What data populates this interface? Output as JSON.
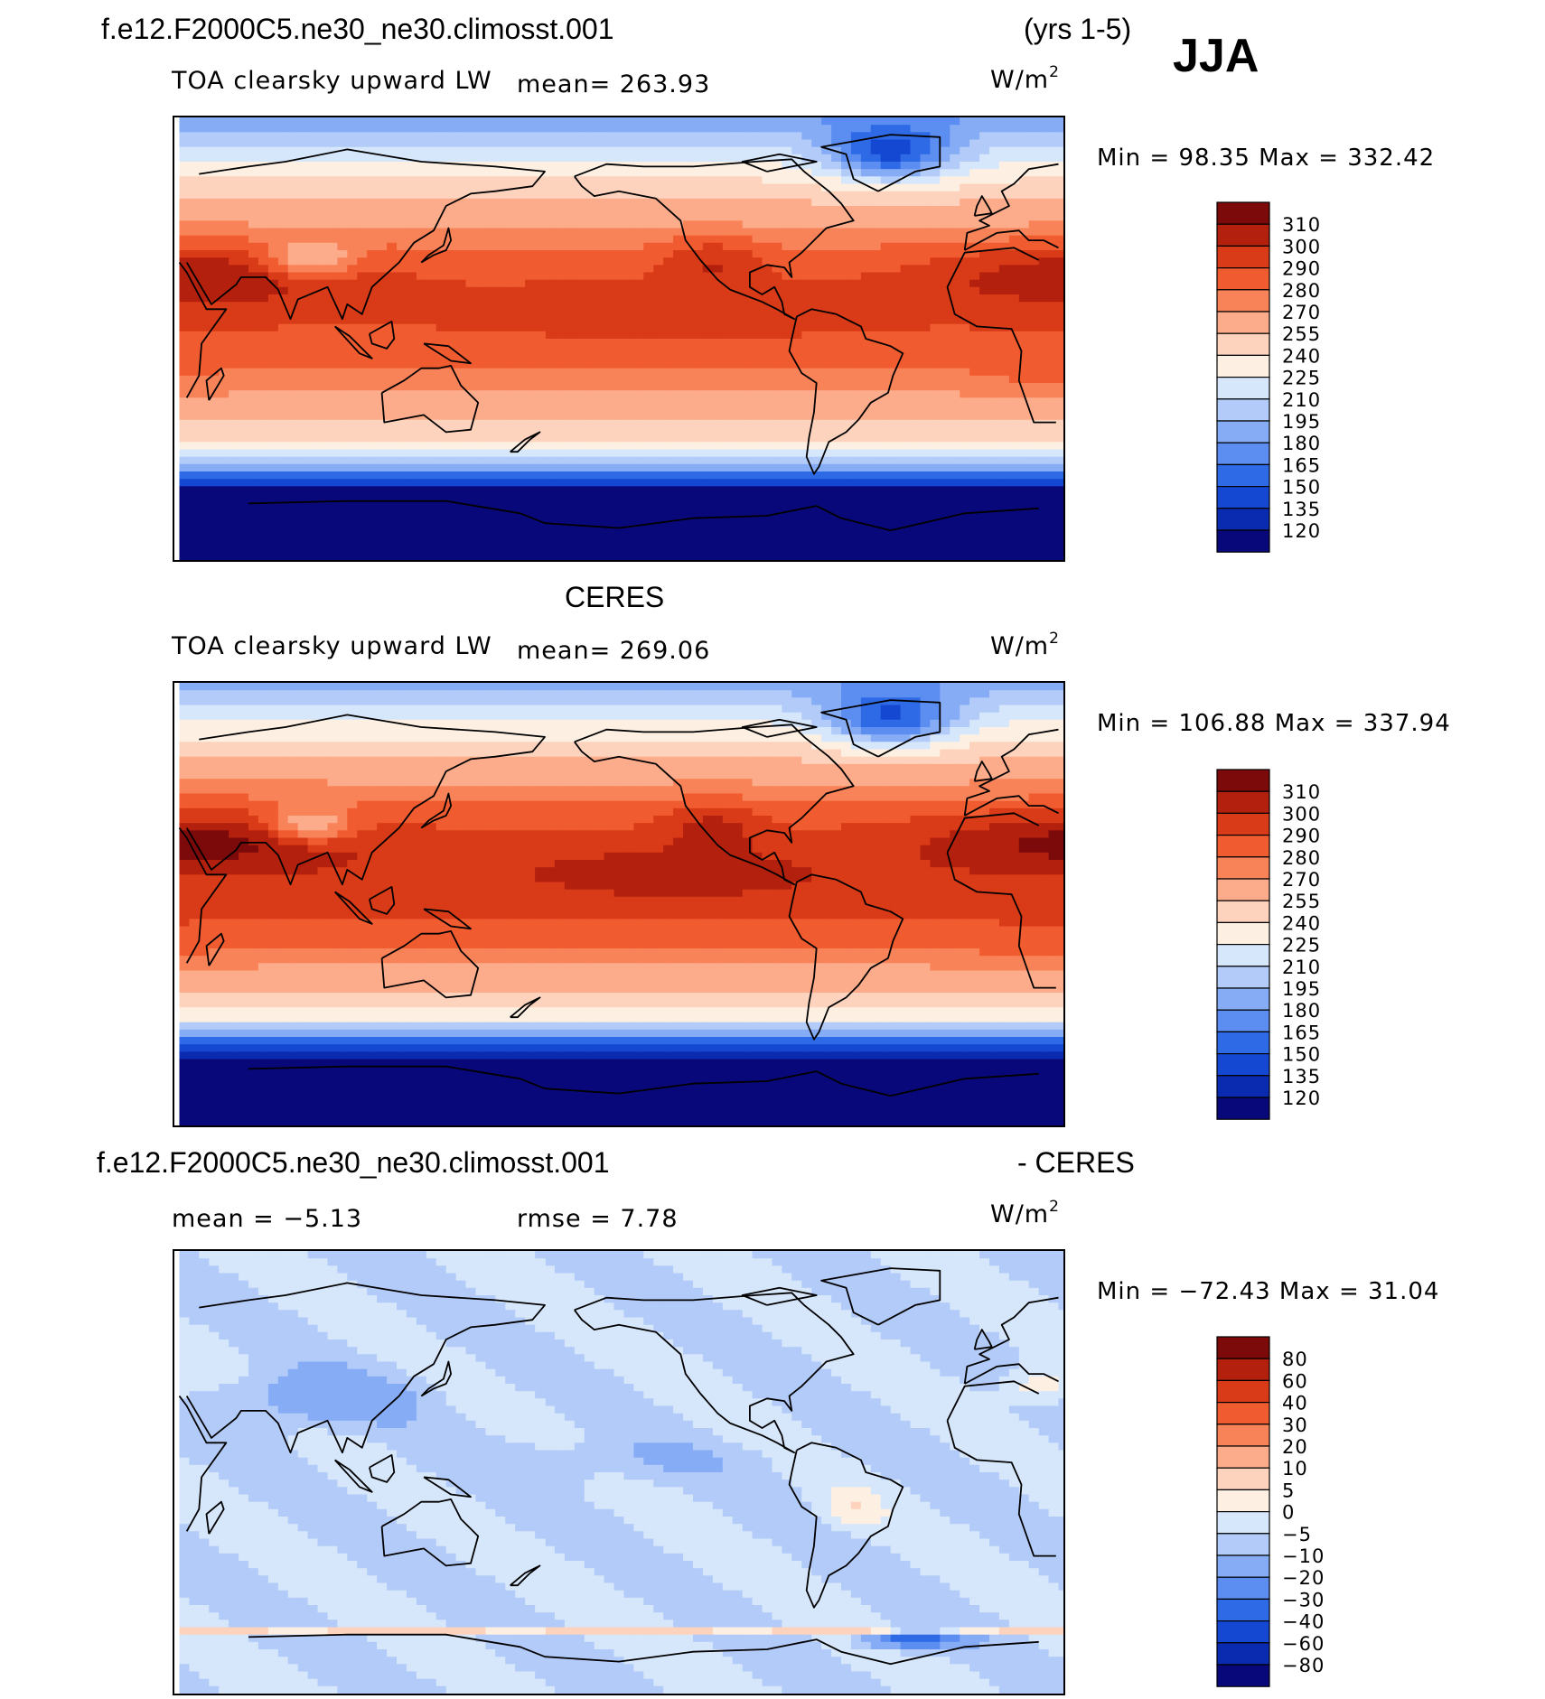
{
  "season": "JJA",
  "years": "(yrs 1-5)",
  "case_name": "f.e12.F2000C5.ne30_ne30.climosst.001",
  "obs_name": "CERES",
  "diff_obs_label": "- CERES",
  "colors": {
    "warm_scale": [
      "#08087a",
      "#0a2bb0",
      "#1548d2",
      "#2e6ae6",
      "#5b8ef0",
      "#86acf5",
      "#b2cbf8",
      "#d6e6fb",
      "#fdf0e2",
      "#fdd3bd",
      "#fcac8a",
      "#f98358",
      "#f15b30",
      "#d93a17",
      "#b4200e",
      "#7c0a0a"
    ],
    "diff_scale": [
      "#08087a",
      "#0a2bb0",
      "#1548d2",
      "#2e6ae6",
      "#5b8ef0",
      "#86acf5",
      "#b2cbf8",
      "#d6e6fb",
      "#fdf0e2",
      "#fdd3bd",
      "#fcac8a",
      "#f98358",
      "#f15b30",
      "#d93a17",
      "#b4200e",
      "#7c0a0a"
    ]
  },
  "panels": [
    {
      "id": "model",
      "variable": "TOA clearsky upward LW",
      "mean_text": "mean=  263.93",
      "units_base": "W/m",
      "units_exp": "2",
      "minmax": "Min =   98.35 Max =  332.42",
      "colorbar_labels": [
        "310",
        "300",
        "290",
        "280",
        "270",
        "255",
        "240",
        "225",
        "210",
        "195",
        "180",
        "165",
        "150",
        "135",
        "120"
      ]
    },
    {
      "id": "obs",
      "variable": "TOA clearsky upward LW",
      "mean_text": "mean=  269.06",
      "units_base": "W/m",
      "units_exp": "2",
      "minmax": "Min =  106.88 Max =  337.94",
      "colorbar_labels": [
        "310",
        "300",
        "290",
        "280",
        "270",
        "255",
        "240",
        "225",
        "210",
        "195",
        "180",
        "165",
        "150",
        "135",
        "120"
      ]
    },
    {
      "id": "diff",
      "mean_text": "mean =   −5.13",
      "rmse_text": "rmse =    7.78",
      "units_base": "W/m",
      "units_exp": "2",
      "minmax": "Min =  −72.43 Max =   31.04",
      "colorbar_labels": [
        "80",
        "60",
        "40",
        "30",
        "20",
        "10",
        "5",
        "0",
        "−5",
        "−10",
        "−20",
        "−30",
        "−40",
        "−60",
        "−80"
      ]
    }
  ]
}
